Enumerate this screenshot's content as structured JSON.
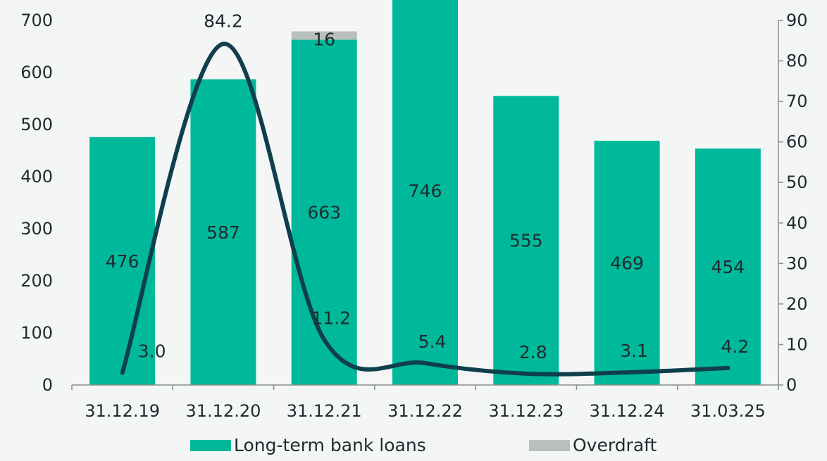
{
  "chart_data": {
    "type": "bar",
    "categories": [
      "31.12.19",
      "31.12.20",
      "31.12.21",
      "31.12.22",
      "31.12.23",
      "31.12.24",
      "31.03.25"
    ],
    "series": [
      {
        "name": "Long-term bank loans",
        "type": "bar",
        "axis": "left",
        "stack": "total",
        "values": [
          476,
          587,
          663,
          746,
          555,
          469,
          454
        ],
        "labels": [
          "476",
          "587",
          "663",
          "746",
          "555",
          "469",
          "454"
        ],
        "color": "#00b99b"
      },
      {
        "name": "Overdraft",
        "type": "bar",
        "axis": "left",
        "stack": "total",
        "values": [
          0,
          0,
          16,
          0,
          0,
          0,
          0
        ],
        "labels": [
          "",
          "",
          "16",
          "",
          "",
          "",
          ""
        ],
        "color": "#b9bfbc"
      },
      {
        "type": "line",
        "axis": "right",
        "values": [
          3.0,
          84.2,
          11.2,
          5.4,
          2.8,
          3.1,
          4.2
        ],
        "labels": [
          "3.0",
          "84.2",
          "11.2",
          "5.4",
          "2.8",
          "3.1",
          "4.2"
        ],
        "color": "#0f3f4d"
      }
    ],
    "ylim": [
      0,
      700
    ],
    "yticks": [
      "0",
      "100",
      "200",
      "300",
      "400",
      "500",
      "600",
      "700"
    ],
    "y2lim": [
      0,
      90
    ],
    "y2ticks": [
      "0",
      "10",
      "20",
      "30",
      "40",
      "50",
      "60",
      "70",
      "80",
      "90"
    ],
    "grid": false,
    "legend_position": "bottom",
    "legend": [
      "Long-term bank loans",
      "Overdraft"
    ]
  }
}
